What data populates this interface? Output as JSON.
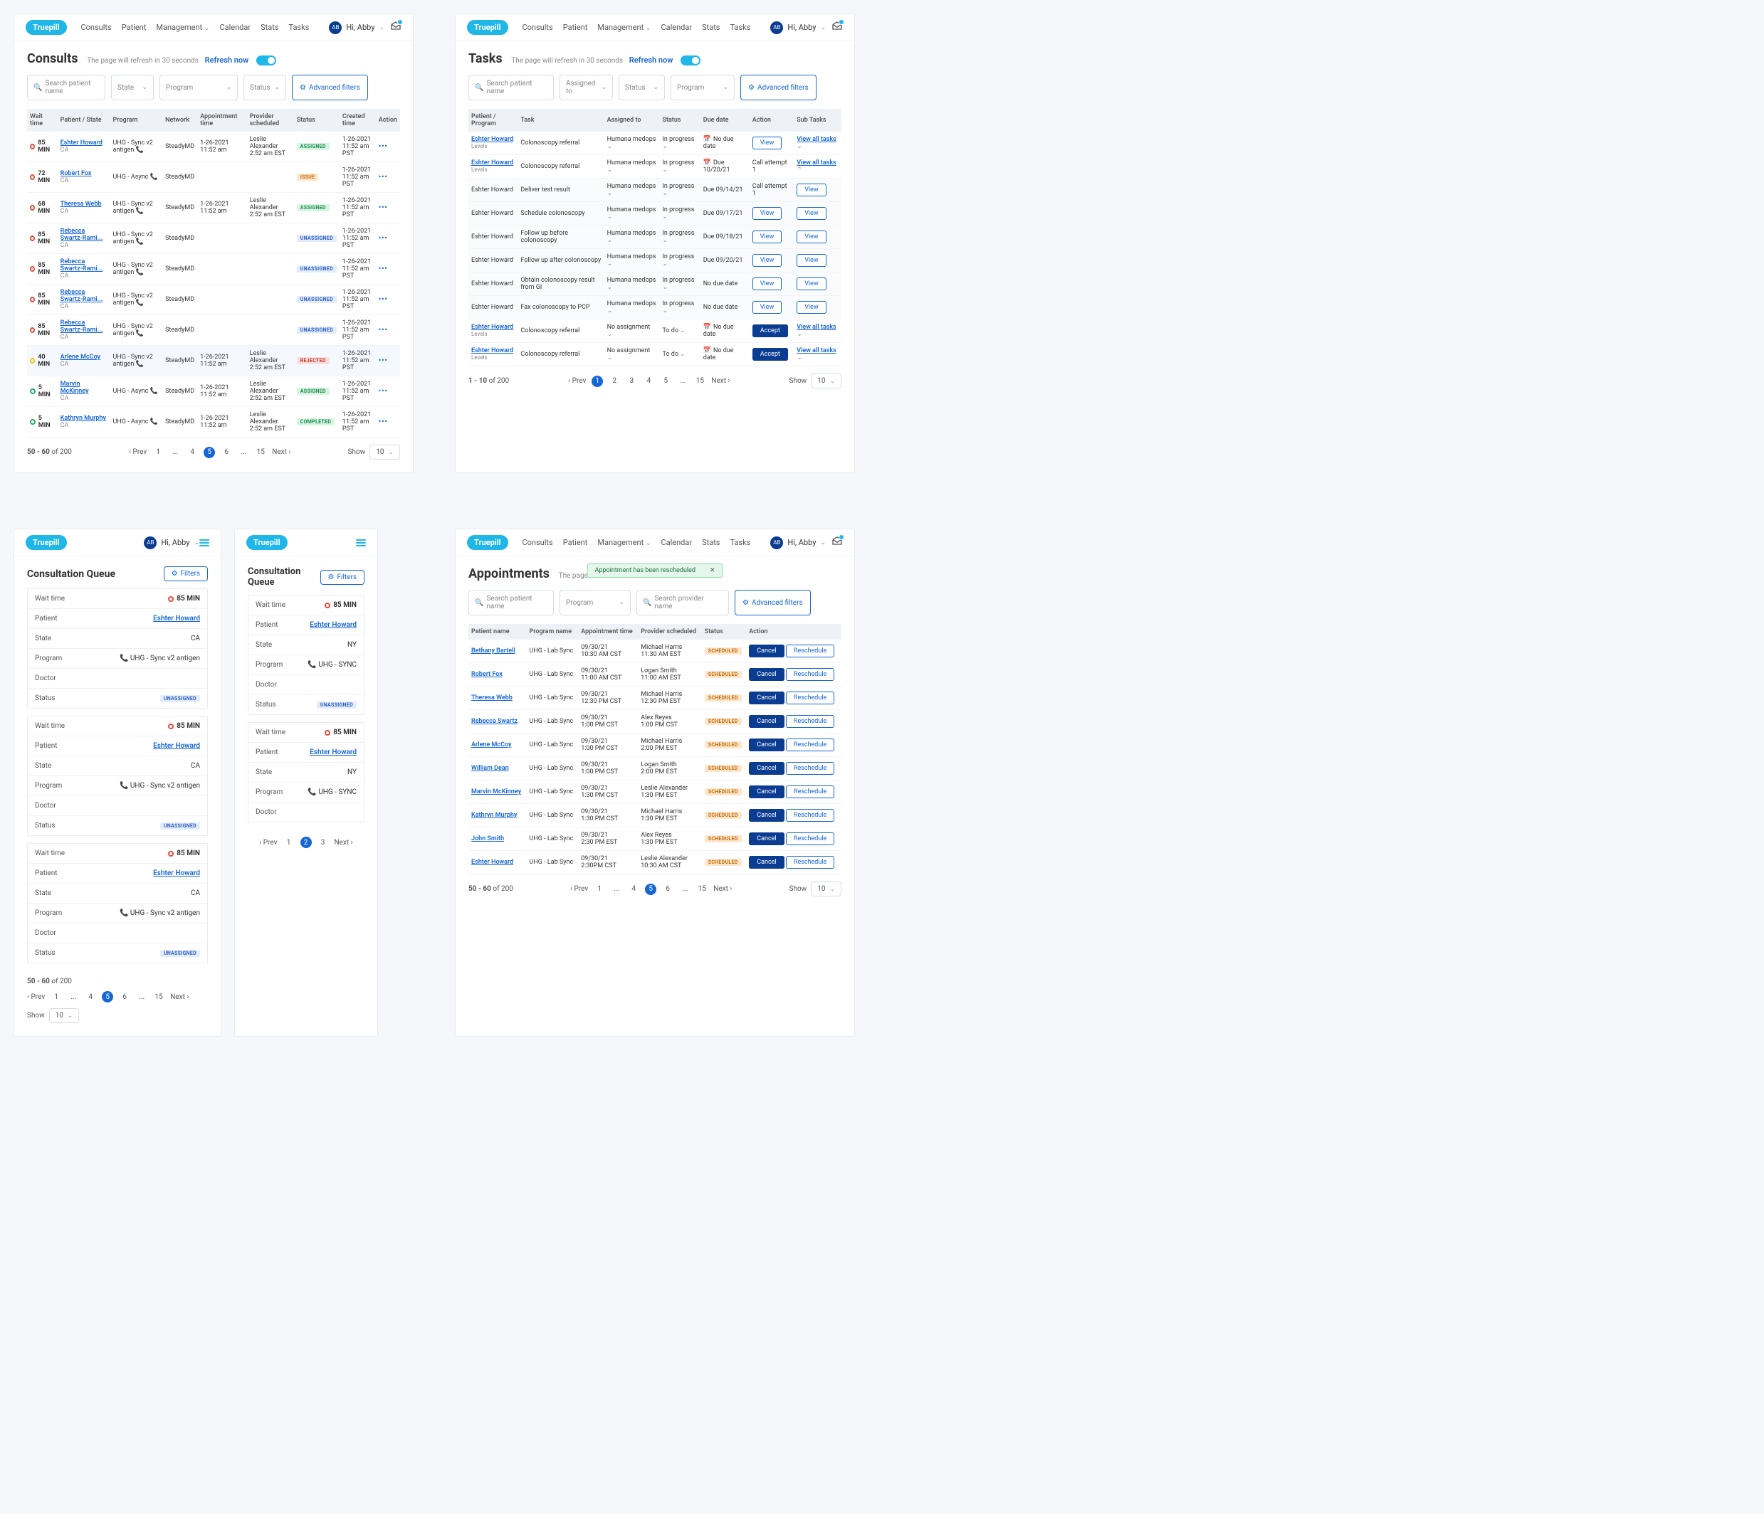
{
  "brand": "Truepill",
  "nav": [
    "Consults",
    "Patient",
    "Management",
    "Calendar",
    "Stats",
    "Tasks"
  ],
  "user": {
    "initials": "AB",
    "greeting": "Hi, Abby"
  },
  "consults": {
    "title": "Consults",
    "sub": "The page will refresh in 30 seconds",
    "refresh": "Refresh now",
    "search_ph": "Search patient name",
    "filter1": "State",
    "filter2": "Program",
    "filter3": "Status",
    "adv": "Advanced filters",
    "cols": [
      "Wait time",
      "Patient / State",
      "Program",
      "Network",
      "Appointment time",
      "Provider scheduled",
      "Status",
      "Created time",
      "Action"
    ],
    "rows": [
      {
        "w": "85 MIN",
        "wc": "red",
        "name": "Eshter Howard",
        "st": "CA",
        "prog": "UHG - Sync v2 antigen",
        "nw": "SteadyMD",
        "appt": "1-26-2021\n11:52 am",
        "prov": "Leslie Alexander\n2:52 am EST",
        "status": "ASSIGNED",
        "sc": "assigned",
        "ct": "1-26-2021\n11:52 am PST"
      },
      {
        "w": "72 MIN",
        "wc": "red",
        "name": "Robert Fox",
        "st": "CA",
        "prog": "UHG - Async",
        "nw": "SteadyMD",
        "appt": "",
        "prov": "",
        "status": "ISSUE",
        "sc": "issue",
        "ct": "1-26-2021\n11:52 am PST"
      },
      {
        "w": "68 MIN",
        "wc": "red",
        "name": "Theresa Webb",
        "st": "CA",
        "prog": "UHG - Sync v2 antigen",
        "nw": "SteadyMD",
        "appt": "1-26-2021\n11:52 am",
        "prov": "Leslie Alexander\n2:52 am EST",
        "status": "ASSIGNED",
        "sc": "assigned",
        "ct": "1-26-2021\n11:52 am PST"
      },
      {
        "w": "85 MIN",
        "wc": "red",
        "name": "Rebecca Swartz-Rami...",
        "st": "CA",
        "prog": "UHG - Sync v2 antigen",
        "nw": "SteadyMD",
        "appt": "",
        "prov": "",
        "status": "UNASSIGNED",
        "sc": "unassigned",
        "ct": "1-26-2021\n11:52 am PST"
      },
      {
        "w": "85 MIN",
        "wc": "red",
        "name": "Rebecca Swartz-Rami...",
        "st": "CA",
        "prog": "UHG - Sync v2 antigen",
        "nw": "SteadyMD",
        "appt": "",
        "prov": "",
        "status": "UNASSIGNED",
        "sc": "unassigned",
        "ct": "1-26-2021\n11:52 am PST"
      },
      {
        "w": "85 MIN",
        "wc": "red",
        "name": "Rebecca Swartz-Rami...",
        "st": "CA",
        "prog": "UHG - Sync v2 antigen",
        "nw": "SteadyMD",
        "appt": "",
        "prov": "",
        "status": "UNASSIGNED",
        "sc": "unassigned",
        "ct": "1-26-2021\n11:52 am PST"
      },
      {
        "w": "85 MIN",
        "wc": "red",
        "name": "Rebecca Swartz-Rami...",
        "st": "CA",
        "prog": "UHG - Sync v2 antigen",
        "nw": "SteadyMD",
        "appt": "",
        "prov": "",
        "status": "UNASSIGNED",
        "sc": "unassigned",
        "ct": "1-26-2021\n11:52 am PST"
      },
      {
        "w": "40 MIN",
        "wc": "yellow",
        "name": "Arlene McCoy",
        "st": "CA",
        "prog": "UHG - Sync v2 antigen",
        "nw": "SteadyMD",
        "appt": "1-26-2021\n11:52 am",
        "prov": "Leslie Alexander\n2:52 am EST",
        "status": "REJECTED",
        "sc": "rejected",
        "ct": "1-26-2021\n11:52 am PST",
        "hl": true
      },
      {
        "w": "5 MIN",
        "wc": "green",
        "name": "Marvin McKinney",
        "st": "CA",
        "prog": "UHG - Async",
        "nw": "SteadyMD",
        "appt": "1-26-2021\n11:52 am",
        "prov": "Leslie Alexander\n2:52 am EST",
        "status": "ASSIGNED",
        "sc": "assigned",
        "ct": "1-26-2021\n11:52 am PST"
      },
      {
        "w": "5 MIN",
        "wc": "green",
        "name": "Kathryn Murphy",
        "st": "CA",
        "prog": "UHG - Async",
        "nw": "SteadyMD",
        "appt": "1-26-2021\n11:52 am",
        "prov": "Leslie Alexander\n2:52 am EST",
        "status": "COMPLETED",
        "sc": "completed",
        "ct": "1-26-2021\n11:52 am PST"
      }
    ],
    "range": "50 - 60",
    "total": "of 200",
    "pages": [
      "1",
      "...",
      "4",
      "5",
      "6",
      "...",
      "15"
    ],
    "curpage": "5",
    "show": "10"
  },
  "tasks": {
    "title": "Tasks",
    "sub": "The page will refresh in 30 seconds",
    "refresh": "Refresh now",
    "search_ph": "Search patient name",
    "f1": "Assigned to",
    "f2": "Status",
    "f3": "Program",
    "adv": "Advanced filters",
    "cols": [
      "Patient / Program",
      "Task",
      "Assigned to",
      "Status",
      "Due date",
      "Action",
      "Sub Tasks"
    ],
    "rows": [
      {
        "name": "Eshter Howard",
        "sub": "Levels",
        "task": "Colonoscopy referral",
        "asg": "Humana medops",
        "st": "In progress",
        "due": "No due date",
        "cal": true,
        "act": "View",
        "sublink": "View all tasks",
        "down": true
      },
      {
        "name": "Eshter Howard",
        "sub": "Levels",
        "task": "Colonoscopy referral",
        "asg": "Humana medops",
        "st": "In progress",
        "due": "Due 10/20/21",
        "cal": true,
        "act": "Call attempt 1",
        "sublink": "View all tasks",
        "up": true,
        "expanded": true
      },
      {
        "name": "Eshter Howard",
        "task": "Deliver test result",
        "asg": "Humana medops",
        "st": "In progress",
        "due": "Due 09/14/21",
        "act": "Call attempt 1",
        "view": "View",
        "subrow": true
      },
      {
        "name": "Eshter Howard",
        "task": "Schedule colonoscopy",
        "asg": "Humana medops",
        "st": "In progress",
        "due": "Due 09/17/21",
        "view": "View",
        "subrow": true
      },
      {
        "name": "Eshter Howard",
        "task": "Follow up before colonoscopy",
        "asg": "Humana medops",
        "st": "In progress",
        "due": "Due 09/18/21",
        "view": "View",
        "subrow": true
      },
      {
        "name": "Eshter Howard",
        "task": "Follow up after colonoscopy",
        "asg": "Humana medops",
        "st": "In progress",
        "due": "Due 09/20/21",
        "view": "View",
        "subrow": true
      },
      {
        "name": "Eshter Howard",
        "task": "Obtain colonoscopy result from GI",
        "asg": "Humana medops",
        "st": "In progress",
        "due": "No due date",
        "view": "View",
        "subrow": true
      },
      {
        "name": "Eshter Howard",
        "task": "Fax colonoscopy to PCP",
        "asg": "Humana medops",
        "st": "In progress",
        "due": "No due date",
        "view": "View",
        "subrow": true
      },
      {
        "name": "Eshter Howard",
        "sub": "Levels",
        "task": "Colonoscopy referral",
        "asg": "No assignment",
        "st": "To do",
        "due": "No due date",
        "cal": true,
        "accept": "Accept",
        "sublink": "View all tasks",
        "down": true
      },
      {
        "name": "Eshter Howard",
        "sub": "Levels",
        "task": "Colonoscopy referral",
        "asg": "No assignment",
        "st": "To do",
        "due": "No due date",
        "cal": true,
        "accept": "Accept",
        "sublink": "View all tasks",
        "down": true
      }
    ],
    "range": "1 - 10",
    "total": "of 200",
    "pages": [
      "1",
      "2",
      "3",
      "4",
      "5",
      "...",
      "15"
    ],
    "curpage": "1",
    "show": "10"
  },
  "queue": {
    "title": "Consultation Queue",
    "filters": "Filters",
    "cards": [
      {
        "wait": "85 MIN",
        "patient": "Eshter Howard",
        "state": "CA",
        "program": "UHG - Sync v2 antigen",
        "status": "UNASSIGNED"
      },
      {
        "wait": "85 MIN",
        "patient": "Eshter Howard",
        "state": "CA",
        "program": "UHG - Sync v2 antigen",
        "status": "UNASSIGNED"
      },
      {
        "wait": "85 MIN",
        "patient": "Eshter Howard",
        "state": "CA",
        "program": "UHG - Sync v2 antigen",
        "status": "UNASSIGNED"
      }
    ],
    "labels": {
      "wait": "Wait time",
      "patient": "Patient",
      "state": "State",
      "program": "Program",
      "doctor": "Doctor",
      "status": "Status"
    },
    "range": "50 - 60",
    "total": "of 200",
    "pages": [
      "1",
      "...",
      "4",
      "5",
      "6",
      "...",
      "15"
    ],
    "curpage": "5",
    "show": "10"
  },
  "queue2": {
    "title": "Consultation Queue",
    "filters": "Filters",
    "cards": [
      {
        "wait": "85 MIN",
        "patient": "Eshter Howard",
        "state": "NY",
        "program": "UHG - SYNC",
        "status": "UNASSIGNED"
      },
      {
        "wait": "85 MIN",
        "patient": "Eshter Howard",
        "state": "NY",
        "program": "UHG - SYNC"
      }
    ],
    "pages": [
      "1",
      "2",
      "3"
    ],
    "curpage": "2"
  },
  "appts": {
    "title": "Appointments",
    "sub": "The page will refresh in 30 seconds",
    "toast": "Appointment has been rescheduled",
    "search_ph": "Search patient name",
    "f1": "Program",
    "prov_ph": "Search provider name",
    "adv": "Advanced filters",
    "cols": [
      "Patient name",
      "Program name",
      "Appointment time",
      "Provider scheduled",
      "Status",
      "Action"
    ],
    "rows": [
      {
        "name": "Bethany Bartell",
        "prog": "UHG - Lab Sync",
        "appt": "09/30/21\n10:30 AM CST",
        "prov": "Michael Harris\n11:30 AM EST",
        "status": "SCHEDULED"
      },
      {
        "name": "Robert Fox",
        "prog": "UHG - Lab Sync",
        "appt": "09/30/21\n11:00 AM CST",
        "prov": "Logan Smith\n11:00 AM EST",
        "status": "SCHEDULED"
      },
      {
        "name": "Theresa Webb",
        "prog": "UHG - Lab Sync",
        "appt": "09/30/21\n12:30 PM CST",
        "prov": "Michael Harris\n12:30 PM EST",
        "status": "SCHEDULED"
      },
      {
        "name": "Rebecca Swartz",
        "prog": "UHG - Lab Sync",
        "appt": "09/30/21\n1:00 PM CST",
        "prov": "Alex Reyes\n1:00 PM CST",
        "status": "SCHEDULED"
      },
      {
        "name": "Arlene McCoy",
        "prog": "UHG - Lab Sync",
        "appt": "09/30/21\n1:00 PM CST",
        "prov": "Michael Harris\n2:00 PM EST",
        "status": "SCHEDULED"
      },
      {
        "name": "William Dean",
        "prog": "UHG - Lab Sync",
        "appt": "09/30/21\n1:00 PM CST",
        "prov": "Logan Smith\n2:00 PM EST",
        "status": "SCHEDULED"
      },
      {
        "name": "Marvin McKinney",
        "prog": "UHG - Lab Sync",
        "appt": "09/30/21\n1:30 PM CST",
        "prov": "Leslie Alexander\n1:30 PM EST",
        "status": "SCHEDULED"
      },
      {
        "name": "Kathryn Murphy",
        "prog": "UHG - Lab Sync",
        "appt": "09/30/21\n1:30 PM CST",
        "prov": "Michael Harris\n1:30 PM EST",
        "status": "SCHEDULED"
      },
      {
        "name": "John Smith",
        "prog": "UHG - Lab Sync",
        "appt": "09/30/21\n2:30 PM EST",
        "prov": "Alex Reyes\n1:30 PM EST",
        "status": "SCHEDULED"
      },
      {
        "name": "Eshter Howard",
        "prog": "UHG - Lab Sync",
        "appt": "09/30/21\n2:30PM CST",
        "prov": "Leslie Alexander\n10:30 AM CST",
        "status": "SCHEDULED"
      }
    ],
    "cancel": "Cancel",
    "resched": "Reschedule",
    "range": "50 - 60",
    "total": "of 200",
    "pages": [
      "1",
      "...",
      "4",
      "5",
      "6",
      "...",
      "15"
    ],
    "curpage": "5",
    "show": "10"
  },
  "common": {
    "prev": "Prev",
    "next": "Next",
    "show": "Show"
  }
}
